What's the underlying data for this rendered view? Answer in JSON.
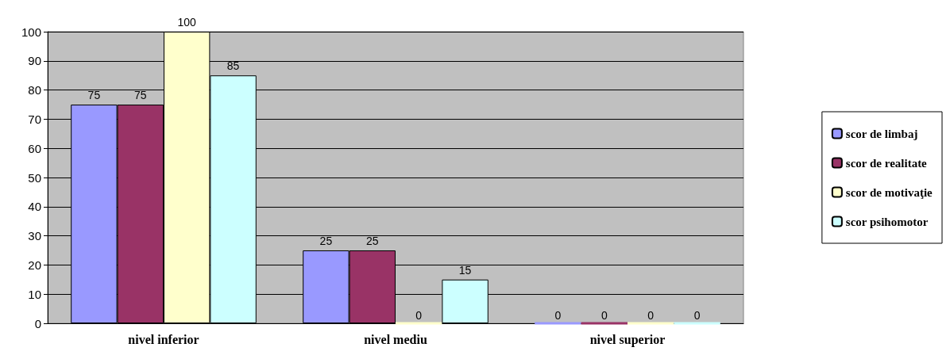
{
  "chart_data": {
    "type": "bar",
    "categories": [
      "nivel inferior",
      "nivel mediu",
      "nivel superior"
    ],
    "series": [
      {
        "name": "scor de limbaj",
        "color": "#9999ff",
        "values": [
          75,
          25,
          0
        ]
      },
      {
        "name": "scor de realitate",
        "color": "#993366",
        "values": [
          75,
          25,
          0
        ]
      },
      {
        "name": "scor de motivaţie",
        "color": "#ffffcc",
        "values": [
          100,
          0,
          0
        ]
      },
      {
        "name": "scor psihomotor",
        "color": "#ccffff",
        "values": [
          85,
          15,
          0
        ]
      }
    ],
    "ylim": [
      0,
      100
    ],
    "yticks": [
      0,
      10,
      20,
      30,
      40,
      50,
      60,
      70,
      80,
      90,
      100
    ],
    "grid": "y",
    "legend": "right",
    "data_labels": true
  }
}
